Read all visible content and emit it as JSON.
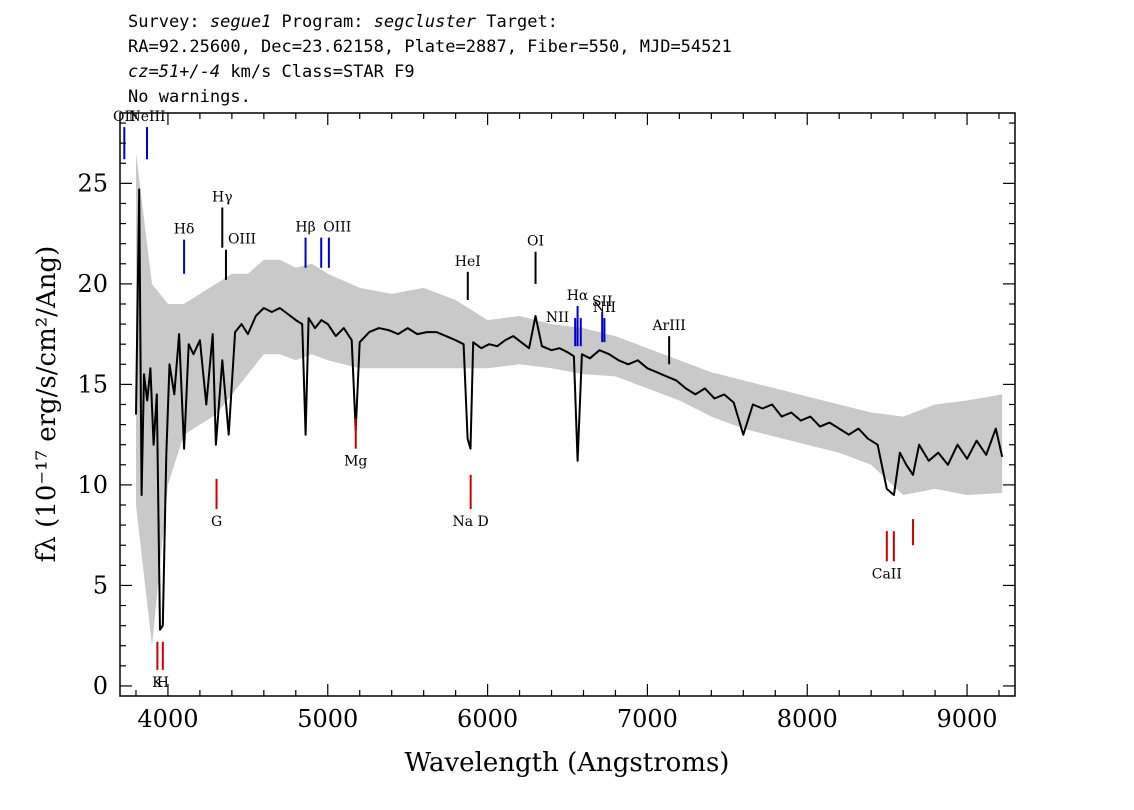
{
  "header": {
    "line1": {
      "survey_label": "Survey: ",
      "survey": "segue1",
      "program_label": " Program: ",
      "program": "segcluster",
      "target_label": " Target:"
    },
    "line2": "RA=92.25600, Dec=23.62158, Plate=2887, Fiber=550, MJD=54521",
    "line3": {
      "cz": "cz=51+/-4",
      "rest": " km/s Class=STAR F9"
    },
    "line4": "No warnings."
  },
  "chart_data": {
    "type": "line",
    "xlabel": "Wavelength (Angstroms)",
    "ylabel": "fλ (10⁻¹⁷ erg/s/cm²/Ang)",
    "xlim": [
      3700,
      9300
    ],
    "ylim": [
      -0.5,
      28.5
    ],
    "x_ticks": [
      4000,
      5000,
      6000,
      7000,
      8000,
      9000
    ],
    "y_ticks": [
      0,
      5,
      10,
      15,
      20,
      25
    ],
    "series": [
      {
        "color": "#000000",
        "x": [
          3800,
          3820,
          3835,
          3850,
          3870,
          3890,
          3910,
          3930,
          3950,
          3968,
          3990,
          4010,
          4040,
          4070,
          4101,
          4130,
          4160,
          4200,
          4240,
          4280,
          4300,
          4340,
          4380,
          4420,
          4460,
          4500,
          4550,
          4600,
          4650,
          4700,
          4750,
          4800,
          4840,
          4861,
          4880,
          4920,
          4960,
          5000,
          5050,
          5100,
          5150,
          5175,
          5200,
          5260,
          5320,
          5380,
          5440,
          5500,
          5560,
          5620,
          5680,
          5740,
          5800,
          5850,
          5875,
          5893,
          5910,
          5960,
          6010,
          6060,
          6110,
          6160,
          6210,
          6260,
          6300,
          6340,
          6400,
          6450,
          6500,
          6540,
          6563,
          6590,
          6640,
          6700,
          6760,
          6820,
          6880,
          6940,
          7000,
          7060,
          7120,
          7180,
          7240,
          7300,
          7360,
          7420,
          7480,
          7540,
          7600,
          7660,
          7720,
          7780,
          7840,
          7900,
          7960,
          8020,
          8080,
          8140,
          8200,
          8260,
          8320,
          8380,
          8440,
          8498,
          8542,
          8580,
          8620,
          8662,
          8700,
          8760,
          8820,
          8880,
          8940,
          9000,
          9060,
          9120,
          9180,
          9220
        ],
        "y": [
          13.5,
          24.7,
          9.5,
          15.5,
          14.2,
          15.8,
          12.0,
          14.5,
          2.8,
          3.0,
          11.5,
          16.0,
          14.5,
          17.5,
          11.8,
          17.0,
          16.5,
          17.2,
          14.0,
          17.5,
          12.0,
          16.2,
          12.5,
          17.6,
          18.0,
          17.5,
          18.4,
          18.8,
          18.6,
          18.8,
          18.5,
          18.2,
          18.0,
          12.5,
          18.3,
          17.8,
          18.2,
          18.0,
          17.4,
          17.8,
          17.2,
          12.7,
          17.1,
          17.6,
          17.8,
          17.7,
          17.5,
          17.8,
          17.5,
          17.6,
          17.6,
          17.4,
          17.2,
          17.0,
          12.3,
          11.8,
          17.1,
          16.8,
          17.0,
          16.9,
          17.2,
          17.4,
          17.1,
          16.8,
          18.4,
          16.9,
          16.7,
          16.8,
          16.6,
          16.4,
          11.2,
          16.5,
          16.3,
          16.7,
          16.5,
          16.2,
          16.0,
          16.2,
          15.8,
          15.6,
          15.4,
          15.2,
          14.8,
          14.5,
          14.8,
          14.3,
          14.5,
          14.1,
          12.5,
          14.0,
          13.8,
          14.0,
          13.4,
          13.6,
          13.2,
          13.4,
          12.9,
          13.1,
          12.8,
          12.5,
          12.8,
          12.3,
          12.0,
          9.8,
          9.5,
          11.6,
          11.0,
          10.5,
          12.0,
          11.2,
          11.6,
          11.0,
          12.0,
          11.3,
          12.2,
          11.5,
          12.8,
          11.4
        ]
      },
      {
        "color": "#bbbbbb",
        "band": true,
        "x": [
          3800,
          3900,
          4000,
          4100,
          4200,
          4300,
          4400,
          4500,
          4600,
          4700,
          4800,
          4900,
          5000,
          5200,
          5400,
          5600,
          5800,
          6000,
          6200,
          6400,
          6600,
          6800,
          7000,
          7200,
          7400,
          7600,
          7800,
          8000,
          8200,
          8400,
          8600,
          8800,
          9000,
          9220
        ],
        "upper": [
          26.5,
          20.0,
          19.0,
          19.0,
          19.5,
          20.0,
          20.5,
          20.5,
          21.2,
          21.2,
          20.8,
          21.0,
          20.5,
          19.8,
          19.5,
          19.8,
          19.2,
          18.2,
          18.4,
          18.0,
          17.8,
          17.4,
          16.8,
          16.2,
          15.6,
          15.2,
          14.8,
          14.4,
          14.0,
          13.6,
          13.4,
          14.0,
          14.2,
          14.5
        ],
        "lower": [
          9.0,
          2.0,
          10.0,
          12.5,
          13.0,
          13.5,
          14.5,
          15.5,
          16.5,
          16.5,
          16.2,
          16.5,
          16.2,
          15.8,
          15.8,
          15.8,
          15.8,
          15.8,
          16.0,
          15.8,
          15.5,
          15.4,
          14.8,
          14.2,
          13.4,
          12.8,
          12.4,
          12.0,
          11.6,
          11.0,
          9.5,
          9.8,
          9.5,
          9.6
        ]
      }
    ],
    "line_markers": [
      {
        "label": "OII",
        "x": 3727,
        "color": "#0000cc",
        "y0": 26.2,
        "y1": 27.8,
        "label_pos": "above"
      },
      {
        "label": "NeIII",
        "x": 3869,
        "color": "#0000cc",
        "y0": 26.2,
        "y1": 27.8,
        "label_pos": "above"
      },
      {
        "label": "Hδ",
        "x": 4101,
        "color": "#0000cc",
        "y0": 20.5,
        "y1": 22.2,
        "label_pos": "above"
      },
      {
        "label": "Hγ",
        "x": 4340,
        "color": "#000000",
        "y0": 21.8,
        "y1": 23.8,
        "label_pos": "above"
      },
      {
        "label": "OIII",
        "x": 4363,
        "color": "#000000",
        "y0": 20.2,
        "y1": 21.7,
        "label_pos": "above-right"
      },
      {
        "label": "Hβ",
        "x": 4861,
        "color": "#0000cc",
        "y0": 20.8,
        "y1": 22.3,
        "label_pos": "above"
      },
      {
        "label": "OIII",
        "x": 4959,
        "color": "#0000cc",
        "y0": 20.8,
        "y1": 22.3,
        "label_pos": "above-right"
      },
      {
        "label": "OIII",
        "x": 5007,
        "color": "#0000cc",
        "y0": 20.8,
        "y1": 22.3,
        "label_pos": "none"
      },
      {
        "label": "HeI",
        "x": 5876,
        "color": "#000000",
        "y0": 19.2,
        "y1": 20.6,
        "label_pos": "above"
      },
      {
        "label": "OI",
        "x": 6300,
        "color": "#000000",
        "y0": 20.0,
        "y1": 21.6,
        "label_pos": "above"
      },
      {
        "label": "NII",
        "x": 6548,
        "color": "#0000cc",
        "y0": 16.9,
        "y1": 18.3,
        "label_pos": "left"
      },
      {
        "label": "Hα",
        "x": 6563,
        "color": "#0000cc",
        "y0": 16.9,
        "y1": 18.9,
        "label_pos": "above"
      },
      {
        "label": "NII",
        "x": 6583,
        "color": "#0000cc",
        "y0": 16.9,
        "y1": 18.3,
        "label_pos": "none"
      },
      {
        "label": "SII",
        "x": 6717,
        "color": "#0000cc",
        "y0": 17.1,
        "y1": 18.6,
        "label_pos": "above"
      },
      {
        "label": "NII",
        "x": 6731,
        "color": "#0000cc",
        "y0": 17.1,
        "y1": 18.3,
        "label_pos": "above-overlap"
      },
      {
        "label": "ArIII",
        "x": 7136,
        "color": "#000000",
        "y0": 16.0,
        "y1": 17.4,
        "label_pos": "above"
      },
      {
        "label": "K",
        "x": 3934,
        "color": "#cc0000",
        "y0": 0.8,
        "y1": 2.2,
        "label_pos": "below"
      },
      {
        "label": "H",
        "x": 3968,
        "color": "#cc0000",
        "y0": 0.8,
        "y1": 2.2,
        "label_pos": "below"
      },
      {
        "label": "G",
        "x": 4304,
        "color": "#cc0000",
        "y0": 8.8,
        "y1": 10.3,
        "label_pos": "below"
      },
      {
        "label": "Mg",
        "x": 5175,
        "color": "#cc0000",
        "y0": 11.8,
        "y1": 13.3,
        "label_pos": "below"
      },
      {
        "label": "Na D",
        "x": 5894,
        "color": "#cc0000",
        "y0": 8.8,
        "y1": 10.5,
        "label_pos": "below"
      },
      {
        "label": "CaII",
        "x": 8498,
        "color": "#cc0000",
        "y0": 6.2,
        "y1": 7.7,
        "label_pos": "below"
      },
      {
        "label": "",
        "x": 8542,
        "color": "#cc0000",
        "y0": 6.2,
        "y1": 7.7,
        "label_pos": "none"
      },
      {
        "label": "",
        "x": 8662,
        "color": "#cc0000",
        "y0": 7.0,
        "y1": 8.3,
        "label_pos": "none"
      }
    ],
    "grid": false,
    "legend": "none"
  }
}
